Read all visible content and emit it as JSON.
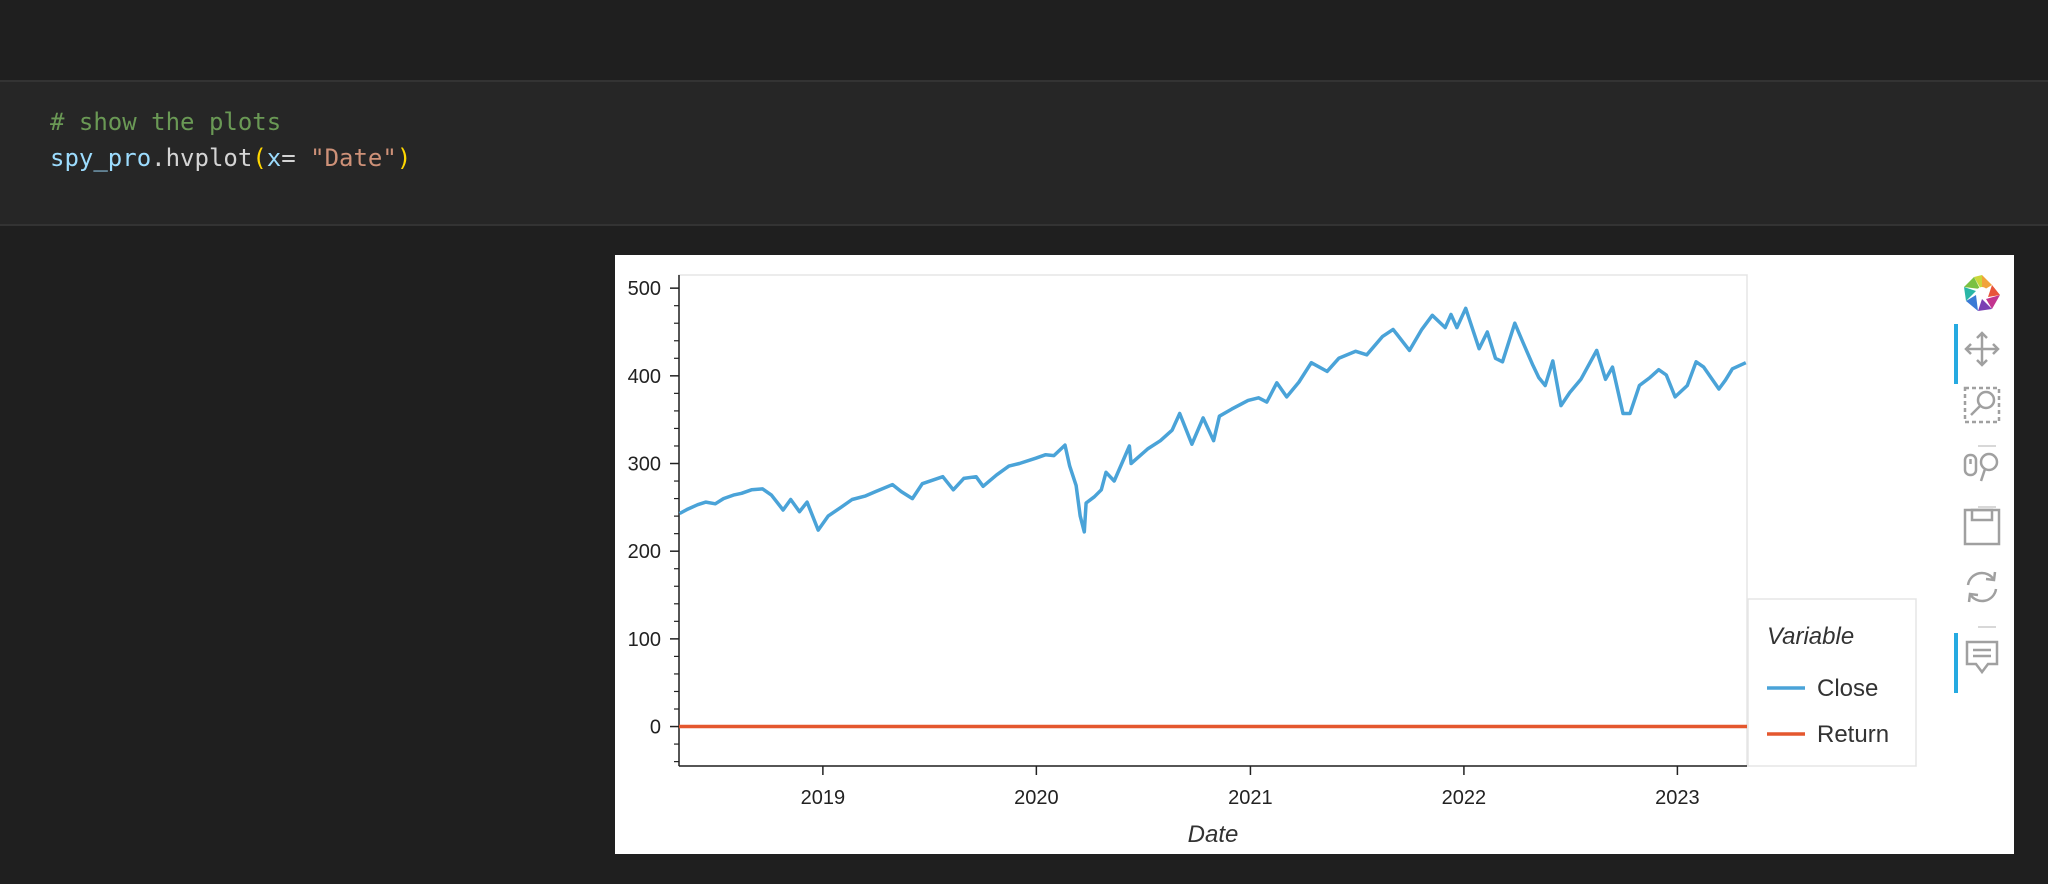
{
  "code_cell": {
    "comment": "# show the plots",
    "var_name": "spy_pro",
    "call": ".hvplot",
    "open_paren": "(",
    "arg_name": "x",
    "arg_eq": "= ",
    "arg_value": "\"Date\"",
    "close_paren": ")"
  },
  "toolbar": {
    "tools": [
      {
        "icon": "bokeh-logo-icon",
        "active": false
      },
      {
        "icon": "pan-icon",
        "active": true
      },
      {
        "icon": "box-zoom-icon",
        "active": false
      },
      {
        "icon": "wheel-zoom-icon",
        "active": false
      },
      {
        "icon": "save-icon",
        "active": false
      },
      {
        "icon": "reset-icon",
        "active": false
      },
      {
        "icon": "hover-icon",
        "active": true
      }
    ],
    "accent_color": "#26aae1"
  },
  "chart_data": {
    "type": "line",
    "xlabel": "Date",
    "ylabel": "",
    "x_ticks": [
      "2019",
      "2020",
      "2021",
      "2022",
      "2023"
    ],
    "y_ticks": [
      "0",
      "100",
      "200",
      "300",
      "400",
      "500"
    ],
    "ylim": [
      -45,
      515
    ],
    "xlim": [
      "2018-04-30",
      "2023-04-30"
    ],
    "grid": false,
    "legend": {
      "title": "Variable",
      "placement": "right"
    },
    "series": [
      {
        "name": "Close",
        "color": "#4aa3d8",
        "points": [
          [
            "2018-05-01",
            243
          ],
          [
            "2018-05-15",
            248
          ],
          [
            "2018-06-01",
            253
          ],
          [
            "2018-06-15",
            256
          ],
          [
            "2018-07-01",
            254
          ],
          [
            "2018-07-15",
            260
          ],
          [
            "2018-08-01",
            264
          ],
          [
            "2018-08-15",
            266
          ],
          [
            "2018-09-01",
            270
          ],
          [
            "2018-09-20",
            271
          ],
          [
            "2018-10-05",
            264
          ],
          [
            "2018-10-25",
            247
          ],
          [
            "2018-11-07",
            259
          ],
          [
            "2018-11-22",
            245
          ],
          [
            "2018-12-05",
            256
          ],
          [
            "2018-12-24",
            224
          ],
          [
            "2019-01-10",
            240
          ],
          [
            "2019-02-01",
            250
          ],
          [
            "2019-02-20",
            259
          ],
          [
            "2019-03-15",
            263
          ],
          [
            "2019-04-01",
            268
          ],
          [
            "2019-04-30",
            276
          ],
          [
            "2019-05-15",
            268
          ],
          [
            "2019-06-03",
            260
          ],
          [
            "2019-06-20",
            277
          ],
          [
            "2019-07-25",
            285
          ],
          [
            "2019-08-12",
            270
          ],
          [
            "2019-08-30",
            283
          ],
          [
            "2019-09-20",
            285
          ],
          [
            "2019-10-02",
            274
          ],
          [
            "2019-10-25",
            287
          ],
          [
            "2019-11-15",
            297
          ],
          [
            "2019-12-03",
            300
          ],
          [
            "2019-12-31",
            306
          ],
          [
            "2020-01-17",
            310
          ],
          [
            "2020-01-31",
            309
          ],
          [
            "2020-02-19",
            321
          ],
          [
            "2020-02-27",
            297
          ],
          [
            "2020-03-09",
            275
          ],
          [
            "2020-03-16",
            240
          ],
          [
            "2020-03-23",
            222
          ],
          [
            "2020-03-26",
            255
          ],
          [
            "2020-04-09",
            262
          ],
          [
            "2020-04-21",
            270
          ],
          [
            "2020-04-29",
            290
          ],
          [
            "2020-05-13",
            280
          ],
          [
            "2020-06-08",
            320
          ],
          [
            "2020-06-11",
            300
          ],
          [
            "2020-07-10",
            317
          ],
          [
            "2020-07-31",
            326
          ],
          [
            "2020-08-20",
            338
          ],
          [
            "2020-09-02",
            357
          ],
          [
            "2020-09-23",
            322
          ],
          [
            "2020-10-12",
            352
          ],
          [
            "2020-10-30",
            326
          ],
          [
            "2020-11-09",
            354
          ],
          [
            "2020-11-30",
            362
          ],
          [
            "2020-12-28",
            372
          ],
          [
            "2021-01-15",
            375
          ],
          [
            "2021-01-29",
            370
          ],
          [
            "2021-02-15",
            392
          ],
          [
            "2021-03-04",
            376
          ],
          [
            "2021-03-25",
            393
          ],
          [
            "2021-04-15",
            415
          ],
          [
            "2021-05-12",
            405
          ],
          [
            "2021-06-01",
            420
          ],
          [
            "2021-06-30",
            428
          ],
          [
            "2021-07-19",
            424
          ],
          [
            "2021-08-15",
            445
          ],
          [
            "2021-09-02",
            453
          ],
          [
            "2021-09-30",
            429
          ],
          [
            "2021-10-21",
            453
          ],
          [
            "2021-11-08",
            469
          ],
          [
            "2021-11-30",
            455
          ],
          [
            "2021-12-10",
            470
          ],
          [
            "2021-12-20",
            455
          ],
          [
            "2022-01-04",
            477
          ],
          [
            "2022-01-27",
            431
          ],
          [
            "2022-02-10",
            450
          ],
          [
            "2022-02-24",
            420
          ],
          [
            "2022-03-08",
            416
          ],
          [
            "2022-03-29",
            460
          ],
          [
            "2022-04-12",
            438
          ],
          [
            "2022-04-29",
            412
          ],
          [
            "2022-05-09",
            398
          ],
          [
            "2022-05-20",
            389
          ],
          [
            "2022-06-02",
            417
          ],
          [
            "2022-06-16",
            366
          ],
          [
            "2022-07-01",
            381
          ],
          [
            "2022-07-20",
            396
          ],
          [
            "2022-08-16",
            429
          ],
          [
            "2022-08-31",
            396
          ],
          [
            "2022-09-12",
            410
          ],
          [
            "2022-09-30",
            357
          ],
          [
            "2022-10-12",
            357
          ],
          [
            "2022-10-28",
            389
          ],
          [
            "2022-11-15",
            398
          ],
          [
            "2022-11-30",
            407
          ],
          [
            "2022-12-13",
            401
          ],
          [
            "2022-12-28",
            376
          ],
          [
            "2023-01-18",
            389
          ],
          [
            "2023-02-02",
            416
          ],
          [
            "2023-02-15",
            410
          ],
          [
            "2023-03-13",
            385
          ],
          [
            "2023-03-24",
            395
          ],
          [
            "2023-04-05",
            408
          ],
          [
            "2023-04-28",
            415
          ]
        ]
      },
      {
        "name": "Return",
        "color": "#e4572e",
        "points": [
          [
            "2018-04-30",
            0
          ],
          [
            "2023-04-30",
            0
          ]
        ]
      }
    ]
  }
}
